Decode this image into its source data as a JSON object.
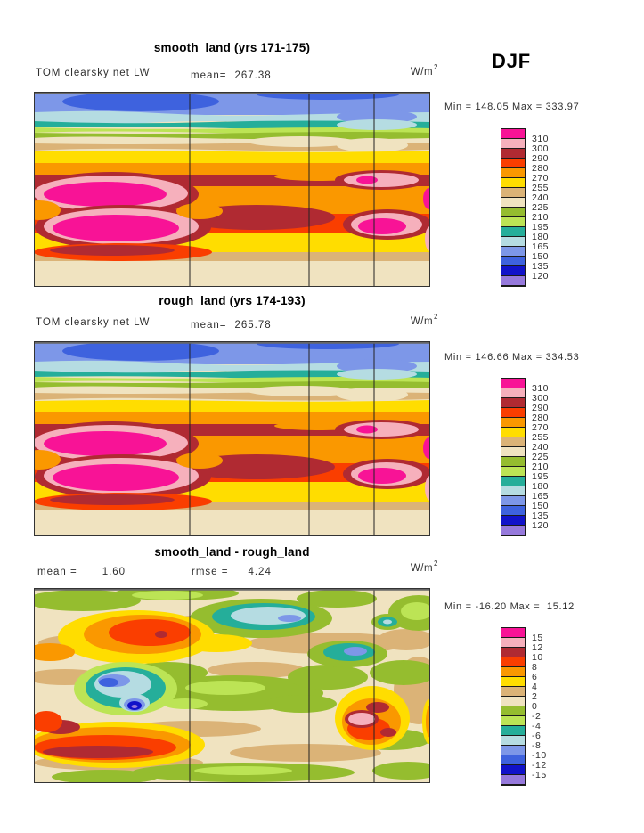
{
  "season_label": "DJF",
  "panels": [
    {
      "title": "smooth_land (yrs 171-175)",
      "variable_label": "TOM clearsky net LW",
      "mean_label": "mean=",
      "mean_value": "267.38",
      "units_base": "W/m",
      "units_exp": "2",
      "min_max": "Min = 148.05 Max = 333.97",
      "colorbar_labels": [
        "310",
        "300",
        "290",
        "280",
        "270",
        "255",
        "240",
        "225",
        "210",
        "195",
        "180",
        "165",
        "150",
        "135",
        "120"
      ]
    },
    {
      "title": "rough_land (yrs 174-193)",
      "variable_label": "TOM clearsky net LW",
      "mean_label": "mean=",
      "mean_value": "265.78",
      "units_base": "W/m",
      "units_exp": "2",
      "min_max": "Min = 146.66 Max = 334.53",
      "colorbar_labels": [
        "310",
        "300",
        "290",
        "280",
        "270",
        "255",
        "240",
        "225",
        "210",
        "195",
        "180",
        "165",
        "150",
        "135",
        "120"
      ]
    },
    {
      "title": "smooth_land - rough_land",
      "mean_label": "mean =",
      "mean_value": "1.60",
      "rmse_label": "rmse =",
      "rmse_value": "4.24",
      "units_base": "W/m",
      "units_exp": "2",
      "min_max": "Min = -16.20 Max =  15.12",
      "colorbar_labels": [
        "15",
        "12",
        "10",
        "8",
        "6",
        "4",
        "2",
        "0",
        "-2",
        "-4",
        "-6",
        "-8",
        "-10",
        "-12",
        "-15"
      ]
    }
  ],
  "legend_palette_top_to_bottom": [
    "#F81396",
    "#F6B0BC",
    "#B02A32",
    "#FA3E00",
    "#FA9800",
    "#FFDD00",
    "#DBB377",
    "#F0E3C0",
    "#95BD2F",
    "#BCE455",
    "#25AE9A",
    "#B5DCE2",
    "#7D97E8",
    "#3E62DE",
    "#1112C9",
    "#9679DC"
  ],
  "chart_data": [
    {
      "type": "heatmap",
      "subtype": "filled_contour_global_map",
      "title": "smooth_land (yrs 171-175)",
      "variable": "TOM clearsky net LW",
      "season": "DJF",
      "units": "W/m^2",
      "mean": 267.38,
      "min": 148.05,
      "max": 333.97,
      "contour_levels": [
        120,
        135,
        150,
        165,
        180,
        195,
        210,
        225,
        240,
        255,
        270,
        280,
        290,
        300,
        310
      ],
      "palette_low_to_high": [
        "#9679DC",
        "#1112C9",
        "#3E62DE",
        "#7D97E8",
        "#B5DCE2",
        "#25AE9A",
        "#BCE455",
        "#95BD2F",
        "#F0E3C0",
        "#DBB377",
        "#FFDD00",
        "#FA9800",
        "#FA3E00",
        "#B02A32",
        "#F6B0BC",
        "#F81396"
      ],
      "legend_position": "right"
    },
    {
      "type": "heatmap",
      "subtype": "filled_contour_global_map",
      "title": "rough_land (yrs 174-193)",
      "variable": "TOM clearsky net LW",
      "season": "DJF",
      "units": "W/m^2",
      "mean": 265.78,
      "min": 146.66,
      "max": 334.53,
      "contour_levels": [
        120,
        135,
        150,
        165,
        180,
        195,
        210,
        225,
        240,
        255,
        270,
        280,
        290,
        300,
        310
      ],
      "palette_low_to_high": [
        "#9679DC",
        "#1112C9",
        "#3E62DE",
        "#7D97E8",
        "#B5DCE2",
        "#25AE9A",
        "#BCE455",
        "#95BD2F",
        "#F0E3C0",
        "#DBB377",
        "#FFDD00",
        "#FA9800",
        "#FA3E00",
        "#B02A32",
        "#F6B0BC",
        "#F81396"
      ],
      "legend_position": "right"
    },
    {
      "type": "heatmap",
      "subtype": "filled_contour_global_map_difference",
      "title": "smooth_land - rough_land",
      "variable": "TOM clearsky net LW",
      "season": "DJF",
      "units": "W/m^2",
      "mean": 1.6,
      "rmse": 4.24,
      "min": -16.2,
      "max": 15.12,
      "contour_levels": [
        -15,
        -12,
        -10,
        -8,
        -6,
        -4,
        -2,
        0,
        2,
        4,
        6,
        8,
        10,
        12,
        15
      ],
      "palette_low_to_high": [
        "#9679DC",
        "#1112C9",
        "#3E62DE",
        "#7D97E8",
        "#B5DCE2",
        "#25AE9A",
        "#BCE455",
        "#95BD2F",
        "#F0E3C0",
        "#DBB377",
        "#FFDD00",
        "#FA9800",
        "#FA3E00",
        "#B02A32",
        "#F6B0BC",
        "#F81396"
      ],
      "legend_position": "right"
    }
  ]
}
